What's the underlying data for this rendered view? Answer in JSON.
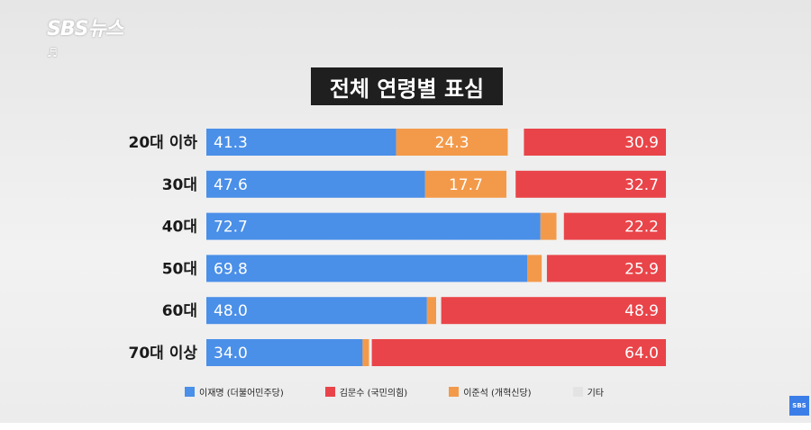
{
  "logo": "SBS뉴스",
  "note_icon": "♬",
  "chart_data": {
    "type": "bar",
    "stacked": true,
    "orientation": "horizontal",
    "title": "전체 연령별 표심",
    "categories": [
      "20대 이하",
      "30대",
      "40대",
      "50대",
      "60대",
      "70대 이상"
    ],
    "series": [
      {
        "name": "이재명 (더불어민주당)",
        "color": "#4a8fe8",
        "values": [
          41.3,
          47.6,
          72.7,
          69.8,
          48.0,
          34.0
        ]
      },
      {
        "name": "이준석 (개혁신당)",
        "color": "#f39a4a",
        "values": [
          24.3,
          17.7,
          3.5,
          3.2,
          2.0,
          1.4
        ]
      },
      {
        "name": "기타",
        "color": "#eeeeee",
        "values": [
          3.5,
          2.0,
          1.6,
          1.1,
          1.1,
          0.6
        ]
      },
      {
        "name": "김문수 (국민의힘)",
        "color": "#e94449",
        "values": [
          30.9,
          32.7,
          22.2,
          25.9,
          48.9,
          64.0
        ]
      }
    ],
    "labels": [
      [
        "41.3",
        "24.3",
        "",
        "30.9"
      ],
      [
        "47.6",
        "17.7",
        "",
        "32.7"
      ],
      [
        "72.7",
        "",
        "",
        "22.2"
      ],
      [
        "69.8",
        "",
        "",
        "25.9"
      ],
      [
        "48.0",
        "",
        "",
        "48.9"
      ],
      [
        "34.0",
        "",
        "",
        "64.0"
      ]
    ],
    "xlim": [
      0,
      100
    ],
    "legend_order": [
      "이재명 (더불어민주당)",
      "김문수 (국민의힘)",
      "이준석 (개혁신당)",
      "기타"
    ],
    "legend_position": "bottom"
  },
  "badge": "SBS"
}
